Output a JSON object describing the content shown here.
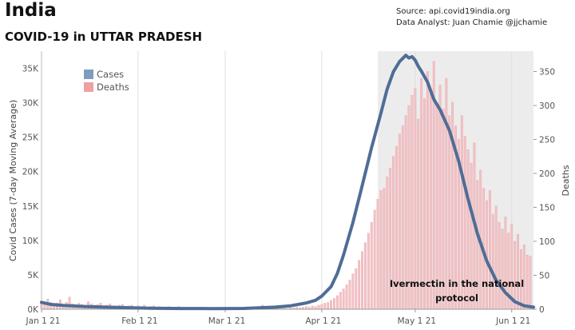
{
  "header": {
    "title": "India",
    "subtitle": "COVID-19 in UTTAR PRADESH",
    "source": "Source: api.covid19india.org",
    "analyst": "Data Analyst:  Juan Chamie @jjchamie"
  },
  "chart_data": {
    "type": "bar+line",
    "x_tick_labels": [
      "Jan 1 21",
      "Feb 1 21",
      "Mar 1 21",
      "Apr 1 21",
      "May 1 21",
      "Jun 1 21"
    ],
    "x_tick_days": [
      0,
      31,
      59,
      90,
      120,
      151
    ],
    "x_range_days": [
      0,
      158
    ],
    "ylabel_left": "Covid Cases (7-day Moving Average)",
    "ylabel_right": "Deaths",
    "ylim_left": [
      0,
      37500
    ],
    "ylim_right": [
      0,
      380
    ],
    "left_ticks": [
      0,
      5000,
      10000,
      15000,
      20000,
      25000,
      30000,
      35000
    ],
    "left_tick_labels": [
      "0K",
      "5K",
      "10K",
      "15K",
      "20K",
      "25K",
      "30K",
      "35K"
    ],
    "right_ticks": [
      0,
      50,
      100,
      150,
      200,
      250,
      300,
      350
    ],
    "right_tick_labels": [
      "0",
      "50",
      "100",
      "150",
      "200",
      "250",
      "300",
      "350"
    ],
    "legend": {
      "position": "top-left",
      "entries": [
        {
          "label": "Cases",
          "color": "#7f9cc0"
        },
        {
          "label": "Deaths",
          "color": "#eea0a3"
        }
      ]
    },
    "shaded_region": {
      "start_day": 108,
      "end_day": 158,
      "color": "#ececec"
    },
    "annotation": {
      "lines": [
        "Ivermectin in the national",
        "protocol"
      ]
    },
    "colors": {
      "cases_line": "#4f6d96",
      "death_bars": "#f2c2c5",
      "death_bar_outline": "#e8a6ab"
    },
    "cases_series": {
      "name": "Cases",
      "x": [
        0,
        3,
        7,
        14,
        21,
        28,
        35,
        45,
        55,
        65,
        75,
        80,
        85,
        88,
        90,
        93,
        95,
        97,
        100,
        103,
        106,
        109,
        111,
        113,
        115,
        117,
        118,
        119,
        120,
        121,
        122,
        124,
        126,
        128,
        131,
        134,
        137,
        140,
        143,
        146,
        149,
        152,
        155,
        158
      ],
      "y": [
        1000,
        700,
        550,
        400,
        300,
        220,
        150,
        100,
        90,
        120,
        300,
        500,
        900,
        1300,
        1900,
        3300,
        5200,
        7900,
        12600,
        18000,
        23500,
        28500,
        32000,
        34500,
        36000,
        36900,
        36500,
        36700,
        36200,
        35300,
        34600,
        33000,
        30500,
        29000,
        26000,
        21500,
        16000,
        11000,
        7000,
        4200,
        2400,
        1100,
        500,
        300
      ]
    },
    "deaths_series": {
      "name": "Deaths",
      "x": [
        0,
        1,
        2,
        3,
        4,
        5,
        6,
        7,
        8,
        9,
        10,
        11,
        12,
        13,
        14,
        15,
        16,
        17,
        18,
        19,
        20,
        21,
        22,
        23,
        24,
        25,
        26,
        27,
        28,
        29,
        30,
        31,
        32,
        33,
        34,
        35,
        36,
        37,
        38,
        39,
        40,
        41,
        42,
        43,
        44,
        45,
        46,
        47,
        48,
        49,
        50,
        51,
        52,
        53,
        54,
        55,
        56,
        57,
        58,
        59,
        60,
        61,
        62,
        63,
        64,
        65,
        66,
        67,
        68,
        69,
        70,
        71,
        72,
        73,
        74,
        75,
        76,
        77,
        78,
        79,
        80,
        81,
        82,
        83,
        84,
        85,
        86,
        87,
        88,
        89,
        90,
        91,
        92,
        93,
        94,
        95,
        96,
        97,
        98,
        99,
        100,
        101,
        102,
        103,
        104,
        105,
        106,
        107,
        108,
        109,
        110,
        111,
        112,
        113,
        114,
        115,
        116,
        117,
        118,
        119,
        120,
        121,
        122,
        123,
        124,
        125,
        126,
        127,
        128,
        129,
        130,
        131,
        132,
        133,
        134,
        135,
        136,
        137,
        138,
        139,
        140,
        141,
        142,
        143,
        144,
        145,
        146,
        147,
        148,
        149,
        150,
        151,
        152,
        153,
        154,
        155,
        156,
        157
      ],
      "y": [
        12,
        8,
        15,
        10,
        6,
        9,
        14,
        7,
        10,
        18,
        8,
        6,
        9,
        7,
        5,
        11,
        8,
        6,
        7,
        9,
        5,
        6,
        8,
        5,
        4,
        6,
        7,
        4,
        5,
        6,
        3,
        5,
        4,
        6,
        3,
        4,
        5,
        3,
        4,
        3,
        2,
        4,
        3,
        2,
        4,
        3,
        2,
        3,
        2,
        3,
        2,
        2,
        3,
        2,
        1,
        2,
        3,
        2,
        1,
        2,
        2,
        1,
        2,
        1,
        2,
        1,
        2,
        1,
        1,
        2,
        1,
        6,
        1,
        2,
        1,
        2,
        1,
        2,
        2,
        1,
        2,
        2,
        3,
        2,
        3,
        4,
        3,
        5,
        4,
        6,
        7,
        9,
        10,
        13,
        16,
        20,
        25,
        30,
        36,
        43,
        52,
        60,
        72,
        85,
        98,
        112,
        128,
        146,
        162,
        175,
        178,
        195,
        208,
        225,
        240,
        258,
        270,
        285,
        300,
        315,
        325,
        280,
        340,
        310,
        350,
        320,
        365,
        300,
        330,
        295,
        340,
        285,
        305,
        270,
        250,
        285,
        255,
        235,
        215,
        245,
        190,
        205,
        178,
        160,
        175,
        140,
        152,
        128,
        118,
        136,
        112,
        125,
        100,
        110,
        88,
        95,
        80,
        78
      ]
    }
  }
}
